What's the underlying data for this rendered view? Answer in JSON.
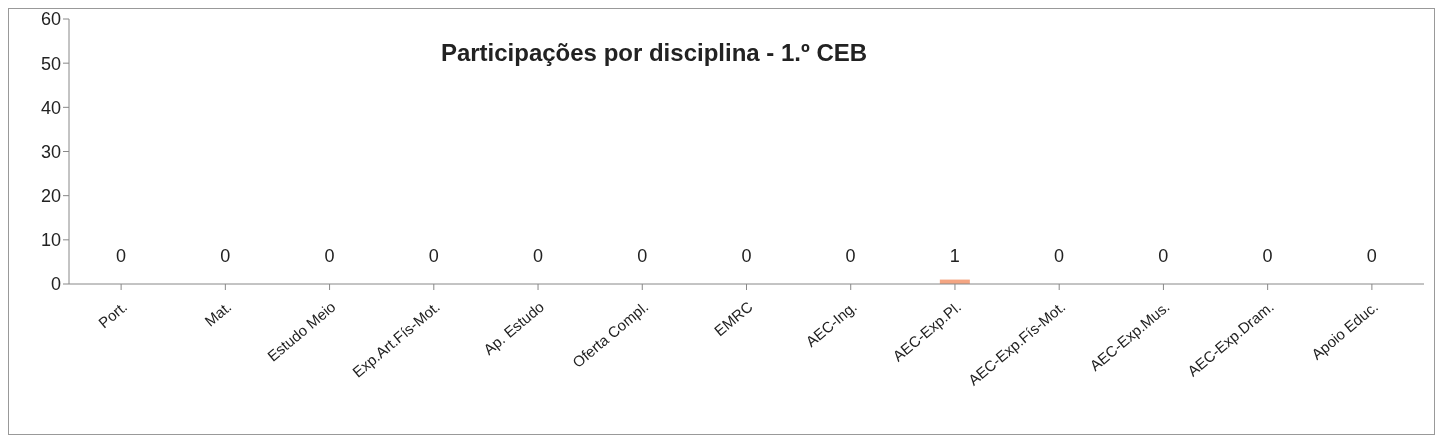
{
  "chart_data": {
    "type": "bar",
    "title": "Participações por disciplina - 1.º CEB",
    "categories": [
      "Port.",
      "Mat.",
      "Estudo Meio",
      "Exp.Art.Fís-Mot.",
      "Ap. Estudo",
      "Oferta Compl.",
      "EMRC",
      "AEC-Ing.",
      "AEC-Exp.Pl.",
      "AEC-Exp.Fís-Mot.",
      "AEC-Exp.Mus.",
      "AEC-Exp.Dram.",
      "Apoio Educ."
    ],
    "values": [
      0,
      0,
      0,
      0,
      0,
      0,
      0,
      0,
      1,
      0,
      0,
      0,
      0
    ],
    "color": "#f4a582",
    "ylim": [
      0,
      60
    ],
    "yticks": [
      0,
      10,
      20,
      30,
      40,
      50,
      60
    ],
    "data_labels": true
  }
}
